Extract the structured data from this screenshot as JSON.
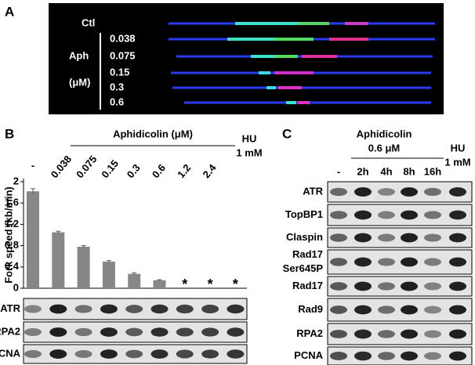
{
  "panel_a": {
    "label": "A",
    "control": "Ctl",
    "treatment": "Aph",
    "unit": "(μM)",
    "concentrations": [
      "0.038",
      "0.075",
      "0.15",
      "0.3",
      "0.6"
    ]
  },
  "panel_b": {
    "label": "B",
    "header": "Aphidicolin (μM)",
    "hu_label": [
      "HU",
      "1 mM"
    ],
    "blots": [
      "ATR",
      "RPA2",
      "PCNA"
    ]
  },
  "chart_data": {
    "type": "bar",
    "y_label": "Fork speed (kb/min)",
    "categories": [
      "-",
      "0.038",
      "0.075",
      "0.15",
      "0.3",
      "0.6",
      "1.2",
      "2.4",
      null
    ],
    "values": [
      1.82,
      1.05,
      0.78,
      0.5,
      0.27,
      0.15,
      null,
      null,
      null
    ],
    "errors": [
      0.05,
      0.02,
      0.02,
      0.02,
      0.02,
      0.01,
      null,
      null,
      null
    ],
    "value_labels": [
      null,
      null,
      null,
      null,
      null,
      null,
      "*",
      "*",
      "*"
    ],
    "color": "#878787",
    "ylim": [
      0,
      2
    ],
    "yticks": [
      0,
      0.4,
      0.8,
      1.2,
      1.6,
      2
    ]
  },
  "panel_c": {
    "label": "C",
    "header": "Aphidicolin",
    "dose": "0.6 μM",
    "lanes": [
      "-",
      "2h",
      "4h",
      "8h",
      "16h"
    ],
    "hu_label": [
      "HU",
      "1 mM"
    ],
    "blots": [
      "ATR",
      "TopBP1",
      "Claspin",
      [
        "Rad17",
        "Ser645P"
      ],
      "Rad17",
      "Rad9",
      "RPA2",
      "PCNA"
    ]
  }
}
